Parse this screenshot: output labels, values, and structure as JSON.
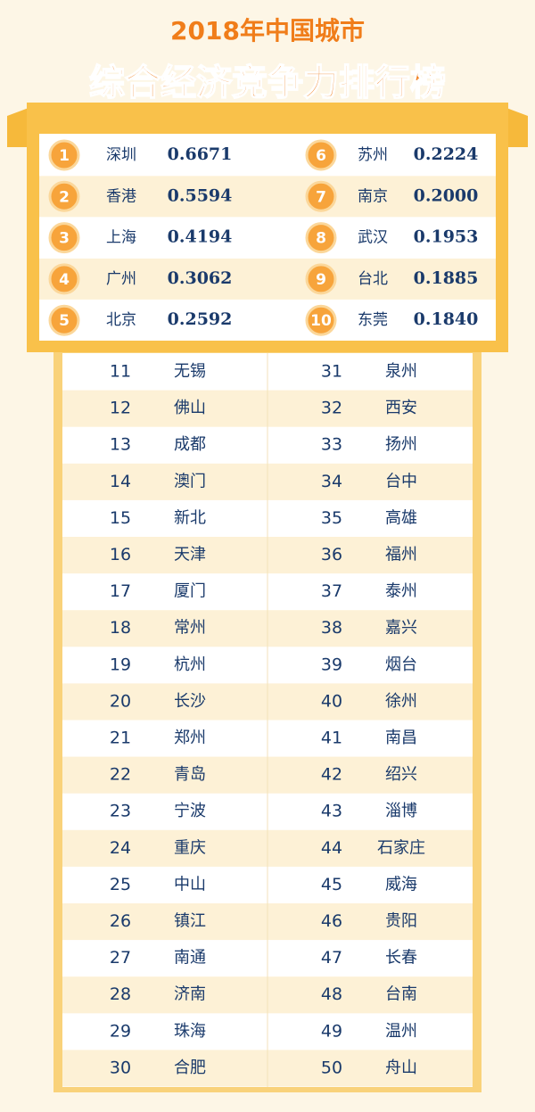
{
  "header": {
    "line1": "2018年中国城市",
    "line2": "综合经济竞争力排行榜"
  },
  "top10": [
    {
      "rank": 1,
      "city": "深圳",
      "score": "0.6671"
    },
    {
      "rank": 2,
      "city": "香港",
      "score": "0.5594"
    },
    {
      "rank": 3,
      "city": "上海",
      "score": "0.4194"
    },
    {
      "rank": 4,
      "city": "广州",
      "score": "0.3062"
    },
    {
      "rank": 5,
      "city": "北京",
      "score": "0.2592"
    },
    {
      "rank": 6,
      "city": "苏州",
      "score": "0.2224"
    },
    {
      "rank": 7,
      "city": "南京",
      "score": "0.2000"
    },
    {
      "rank": 8,
      "city": "武汉",
      "score": "0.1953"
    },
    {
      "rank": 9,
      "city": "台北",
      "score": "0.1885"
    },
    {
      "rank": 10,
      "city": "东莞",
      "score": "0.1840"
    }
  ],
  "list_left": [
    {
      "rank": 11,
      "city": "无锡"
    },
    {
      "rank": 12,
      "city": "佛山"
    },
    {
      "rank": 13,
      "city": "成都"
    },
    {
      "rank": 14,
      "city": "澳门"
    },
    {
      "rank": 15,
      "city": "新北"
    },
    {
      "rank": 16,
      "city": "天津"
    },
    {
      "rank": 17,
      "city": "厦门"
    },
    {
      "rank": 18,
      "city": "常州"
    },
    {
      "rank": 19,
      "city": "杭州"
    },
    {
      "rank": 20,
      "city": "长沙"
    },
    {
      "rank": 21,
      "city": "郑州"
    },
    {
      "rank": 22,
      "city": "青岛"
    },
    {
      "rank": 23,
      "city": "宁波"
    },
    {
      "rank": 24,
      "city": "重庆"
    },
    {
      "rank": 25,
      "city": "中山"
    },
    {
      "rank": 26,
      "city": "镇江"
    },
    {
      "rank": 27,
      "city": "南通"
    },
    {
      "rank": 28,
      "city": "济南"
    },
    {
      "rank": 29,
      "city": "珠海"
    },
    {
      "rank": 30,
      "city": "合肥"
    }
  ],
  "list_right": [
    {
      "rank": 31,
      "city": "泉州"
    },
    {
      "rank": 32,
      "city": "西安"
    },
    {
      "rank": 33,
      "city": "扬州"
    },
    {
      "rank": 34,
      "city": "台中"
    },
    {
      "rank": 35,
      "city": "高雄"
    },
    {
      "rank": 36,
      "city": "福州"
    },
    {
      "rank": 37,
      "city": "泰州"
    },
    {
      "rank": 38,
      "city": "嘉兴"
    },
    {
      "rank": 39,
      "city": "烟台"
    },
    {
      "rank": 40,
      "city": "徐州"
    },
    {
      "rank": 41,
      "city": "南昌"
    },
    {
      "rank": 42,
      "city": "绍兴"
    },
    {
      "rank": 43,
      "city": "淄博"
    },
    {
      "rank": 44,
      "city": "石家庄"
    },
    {
      "rank": 45,
      "city": "威海"
    },
    {
      "rank": 46,
      "city": "贵阳"
    },
    {
      "rank": 47,
      "city": "长春"
    },
    {
      "rank": 48,
      "city": "台南"
    },
    {
      "rank": 49,
      "city": "温州"
    },
    {
      "rank": 50,
      "city": "舟山"
    }
  ]
}
